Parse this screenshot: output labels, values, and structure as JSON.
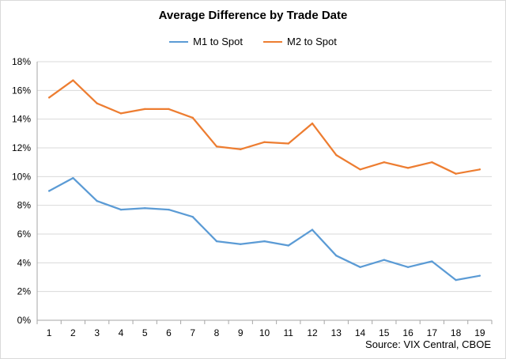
{
  "chart_data": {
    "type": "line",
    "title": "Average Difference by Trade Date",
    "x": [
      1,
      2,
      3,
      4,
      5,
      6,
      7,
      8,
      9,
      10,
      11,
      12,
      13,
      14,
      15,
      16,
      17,
      18,
      19
    ],
    "series": [
      {
        "name": "M1 to Spot",
        "color": "#5b9bd5",
        "values": [
          9.0,
          9.9,
          8.3,
          7.7,
          7.8,
          7.7,
          7.2,
          5.5,
          5.3,
          5.5,
          5.2,
          6.3,
          4.5,
          3.7,
          4.2,
          3.7,
          4.1,
          2.8,
          3.1
        ]
      },
      {
        "name": "M2 to Spot",
        "color": "#ed7d31",
        "values": [
          15.5,
          16.7,
          15.1,
          14.4,
          14.7,
          14.7,
          14.1,
          12.1,
          11.9,
          12.4,
          12.3,
          13.7,
          11.5,
          10.5,
          11.0,
          10.6,
          11.0,
          10.2,
          10.5
        ]
      }
    ],
    "ylim": [
      0,
      18
    ],
    "ytick_step": 2,
    "ytick_format": "%",
    "grid": true,
    "legend_position": "top-center",
    "source": "Source: VIX Central, CBOE"
  }
}
